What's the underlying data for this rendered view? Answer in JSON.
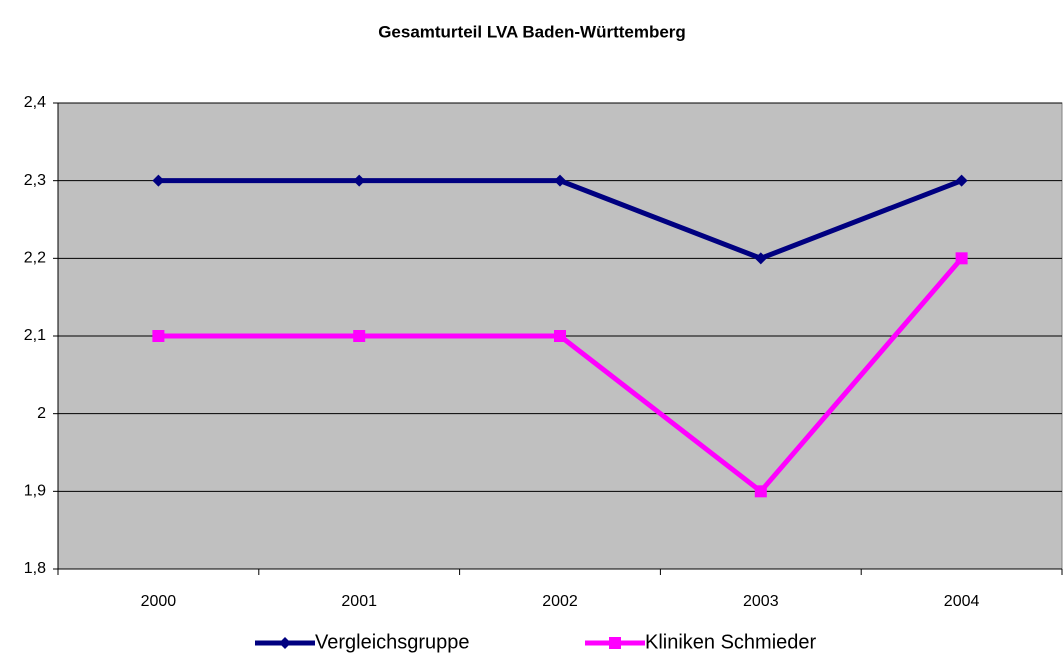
{
  "chart_data": {
    "type": "line",
    "title": "Gesamturteil LVA Baden-Württemberg",
    "categories": [
      "2000",
      "2001",
      "2002",
      "2003",
      "2004"
    ],
    "series": [
      {
        "name": "Vergleichsgruppe",
        "color": "#000080",
        "marker": "diamond",
        "values": [
          2.3,
          2.3,
          2.3,
          2.2,
          2.3
        ]
      },
      {
        "name": "Kliniken Schmieder",
        "color": "#ff00ff",
        "marker": "square",
        "values": [
          2.1,
          2.1,
          2.1,
          1.9,
          2.2
        ]
      }
    ],
    "ylim": [
      1.8,
      2.4
    ],
    "yticks": [
      {
        "value": 1.8,
        "label": "1,8"
      },
      {
        "value": 1.9,
        "label": "1,9"
      },
      2,
      {
        "value": 2.1,
        "label": "2,1"
      },
      {
        "value": 2.2,
        "label": "2,2"
      },
      {
        "value": 2.3,
        "label": "2,3"
      },
      {
        "value": 2.4,
        "label": "2,4"
      }
    ],
    "grid": true,
    "legend": "bottom"
  }
}
